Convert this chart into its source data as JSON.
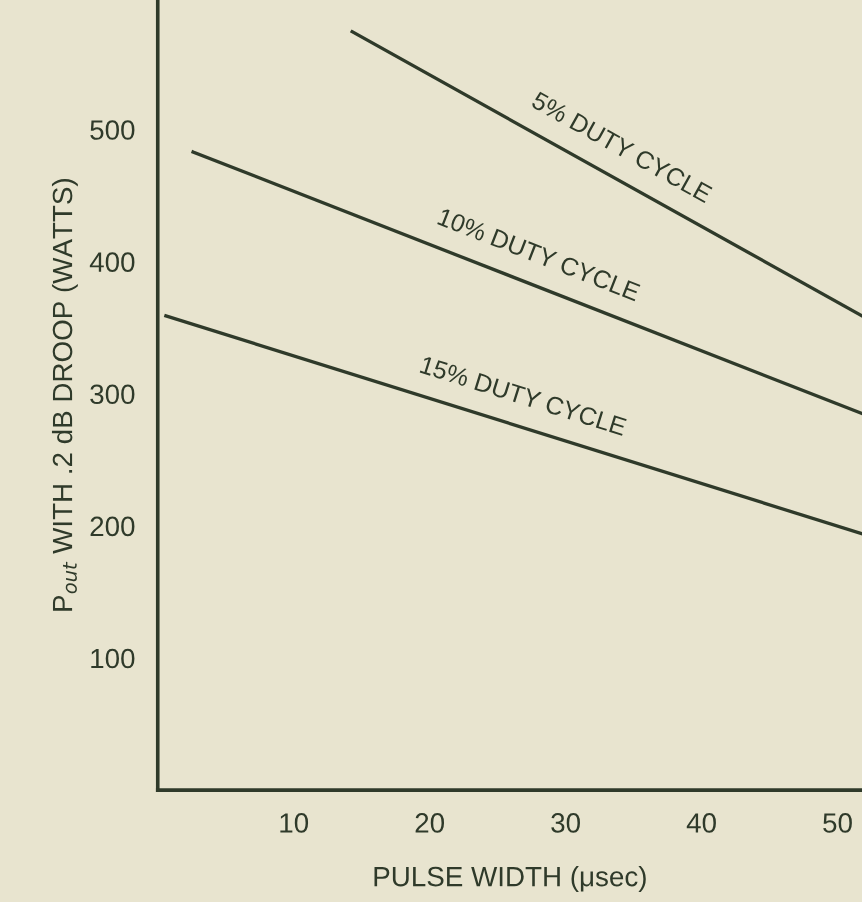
{
  "chart_data": {
    "type": "line",
    "xlabel": "PULSE WIDTH (μsec)",
    "ylabel": "P$_{out}$ WITH .2 dB DROOP (WATTS)",
    "xlim": [
      0,
      51.8
    ],
    "xticks": [
      10,
      20,
      30,
      40,
      50
    ],
    "ylim": [
      0,
      598
    ],
    "yticks": [
      100,
      200,
      300,
      400,
      500
    ],
    "grid": false,
    "legend": false,
    "series": [
      {
        "name": "5% DUTY CYCLE",
        "color": "#2f3a2a",
        "x": [
          14.3,
          51.8
        ],
        "values": [
          574,
          359
        ]
      },
      {
        "name": "10% DUTY CYCLE",
        "color": "#2f3a2a",
        "x": [
          2.6,
          51.8
        ],
        "values": [
          483,
          285
        ]
      },
      {
        "name": "15% DUTY CYCLE",
        "color": "#2f3a2a",
        "x": [
          0.6,
          51.8
        ],
        "values": [
          359,
          194
        ]
      }
    ]
  }
}
